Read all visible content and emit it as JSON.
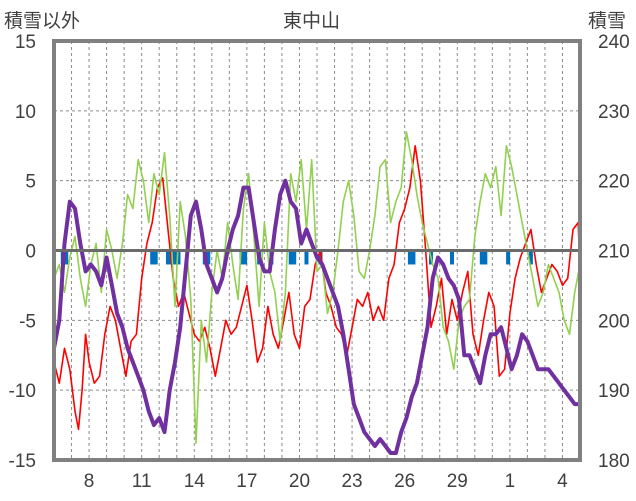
{
  "chart_data": {
    "type": "line",
    "title": "東中山",
    "ylabel_left": "積雪以外",
    "ylabel_right": "積雪",
    "left_axis": {
      "ylim": [
        -15,
        15
      ],
      "ticks": [
        "15",
        "10",
        "5",
        "0",
        "-5",
        "-10",
        "-15"
      ]
    },
    "right_axis": {
      "ylim": [
        180,
        240
      ],
      "ticks": [
        "240",
        "230",
        "220",
        "210",
        "200",
        "190",
        "180"
      ]
    },
    "x_ticks": [
      {
        "label": "8",
        "day": 2
      },
      {
        "label": "11",
        "day": 5
      },
      {
        "label": "14",
        "day": 8
      },
      {
        "label": "17",
        "day": 11
      },
      {
        "label": "20",
        "day": 14
      },
      {
        "label": "23",
        "day": 17
      },
      {
        "label": "26",
        "day": 20
      },
      {
        "label": "29",
        "day": 23
      },
      {
        "label": "1",
        "day": 26
      },
      {
        "label": "4",
        "day": 29
      }
    ],
    "x_range": [
      0,
      30
    ],
    "grid": "dashed-vertical-daily, dashed-horizontal",
    "colors": {
      "red": "#ff0000",
      "green": "#92d050",
      "purple": "#7030a0",
      "blue": "#0070c0",
      "frame": "#808080"
    },
    "series": [
      {
        "color_key": "red",
        "axis": "left",
        "x": [
          0.0,
          0.3,
          0.6,
          0.9,
          1.2,
          1.4,
          1.6,
          1.8,
          2.0,
          2.3,
          2.6,
          2.9,
          3.2,
          3.5,
          3.8,
          4.1,
          4.4,
          4.7,
          5.0,
          5.3,
          5.6,
          5.9,
          6.2,
          6.5,
          6.8,
          7.1,
          7.4,
          7.7,
          8.0,
          8.3,
          8.6,
          8.9,
          9.2,
          9.5,
          9.8,
          10.1,
          10.4,
          10.7,
          11.0,
          11.3,
          11.6,
          11.9,
          12.2,
          12.5,
          12.8,
          13.1,
          13.4,
          13.7,
          14.0,
          14.3,
          14.6,
          14.9,
          15.2,
          15.5,
          15.8,
          16.1,
          16.4,
          16.7,
          17.0,
          17.3,
          17.6,
          17.9,
          18.2,
          18.5,
          18.8,
          19.1,
          19.4,
          19.7,
          20.0,
          20.3,
          20.6,
          20.9,
          21.2,
          21.5,
          21.8,
          22.1,
          22.4,
          22.7,
          23.0,
          23.3,
          23.6,
          23.9,
          24.2,
          24.5,
          24.8,
          25.1,
          25.4,
          25.7,
          26.0,
          26.3,
          26.6,
          26.9,
          27.2,
          27.5,
          27.8,
          28.1,
          28.4,
          28.7,
          29.0,
          29.3,
          29.6,
          29.9,
          30.0
        ],
        "y": [
          -8.0,
          -9.5,
          -7.0,
          -8.5,
          -11.5,
          -12.8,
          -10.0,
          -6.0,
          -8.0,
          -9.5,
          -9.0,
          -6.0,
          -4.0,
          -5.0,
          -7.0,
          -9.0,
          -6.5,
          -6.0,
          -2.0,
          0.5,
          2.0,
          4.5,
          5.2,
          1.5,
          -2.0,
          -4.0,
          -3.0,
          -4.5,
          -6.0,
          -6.5,
          -5.5,
          -7.0,
          -9.0,
          -7.0,
          -5.0,
          -6.0,
          -5.5,
          -4.0,
          -2.5,
          -5.0,
          -8.0,
          -7.0,
          -4.0,
          -6.0,
          -7.0,
          -5.0,
          -3.0,
          -6.0,
          -7.0,
          -4.0,
          -3.5,
          -1.0,
          0.0,
          -3.0,
          -4.0,
          -5.5,
          -6.0,
          -7.5,
          -5.5,
          -3.5,
          -4.0,
          -3.0,
          -5.0,
          -4.0,
          -5.0,
          -2.0,
          -1.0,
          2.0,
          3.0,
          4.5,
          7.5,
          5.0,
          0.0,
          -5.5,
          -4.0,
          -2.0,
          -6.0,
          -3.5,
          -5.0,
          -3.0,
          -1.5,
          -6.0,
          -7.5,
          -5.0,
          -3.0,
          -4.0,
          -9.0,
          -8.5,
          -4.5,
          -2.0,
          -0.5,
          0.5,
          1.5,
          -1.0,
          -3.0,
          -2.0,
          -1.0,
          -1.5,
          -2.5,
          -2.0,
          1.5,
          2.0,
          -1.5
        ]
      },
      {
        "color_key": "green",
        "axis": "left",
        "x": [
          0.0,
          0.3,
          0.6,
          0.9,
          1.2,
          1.5,
          1.8,
          2.1,
          2.4,
          2.7,
          3.0,
          3.3,
          3.6,
          3.9,
          4.2,
          4.5,
          4.8,
          5.1,
          5.4,
          5.7,
          6.0,
          6.3,
          6.6,
          6.9,
          7.2,
          7.5,
          7.8,
          8.1,
          8.4,
          8.7,
          9.0,
          9.3,
          9.6,
          9.9,
          10.2,
          10.5,
          10.8,
          11.1,
          11.4,
          11.7,
          12.0,
          12.3,
          12.6,
          12.9,
          13.2,
          13.5,
          13.8,
          14.1,
          14.4,
          14.7,
          15.0,
          15.3,
          15.6,
          15.9,
          16.2,
          16.5,
          16.8,
          17.1,
          17.4,
          17.7,
          18.0,
          18.3,
          18.6,
          18.9,
          19.2,
          19.5,
          19.8,
          20.1,
          20.4,
          20.7,
          21.0,
          21.3,
          21.6,
          21.9,
          22.2,
          22.5,
          22.8,
          23.1,
          23.4,
          23.7,
          24.0,
          24.3,
          24.6,
          24.9,
          25.2,
          25.5,
          25.8,
          26.1,
          26.4,
          26.7,
          27.0,
          27.3,
          27.6,
          27.9,
          28.2,
          28.5,
          28.8,
          29.1,
          29.4,
          29.7,
          30.0
        ],
        "y": [
          -2.0,
          -1.0,
          -3.0,
          -0.5,
          1.0,
          -2.0,
          -4.0,
          -1.0,
          0.5,
          -3.0,
          1.5,
          0.0,
          -2.0,
          0.5,
          4.0,
          3.0,
          6.5,
          5.0,
          2.0,
          5.5,
          4.0,
          7.0,
          2.5,
          -4.0,
          3.5,
          1.0,
          -3.5,
          -13.8,
          -5.0,
          -8.0,
          -3.0,
          0.0,
          -2.0,
          2.0,
          -1.0,
          -3.5,
          3.0,
          5.5,
          1.0,
          -4.0,
          2.0,
          -1.5,
          -3.0,
          -6.5,
          -3.0,
          5.5,
          3.5,
          6.5,
          1.5,
          6.5,
          -1.5,
          -1.0,
          -4.5,
          -3.0,
          0.0,
          3.5,
          5.0,
          2.5,
          -1.5,
          -2.0,
          0.0,
          2.5,
          6.0,
          6.5,
          2.0,
          3.5,
          4.5,
          8.5,
          6.5,
          4.0,
          2.0,
          0.5,
          -1.0,
          -2.0,
          -5.5,
          -6.5,
          -8.5,
          -5.0,
          -4.0,
          -3.5,
          1.0,
          3.5,
          5.5,
          4.5,
          6.0,
          2.5,
          7.5,
          6.0,
          4.0,
          2.0,
          0.0,
          -2.0,
          -4.0,
          -3.0,
          -1.0,
          -2.0,
          -3.0,
          -5.0,
          -6.0,
          -3.0,
          -1.0
        ]
      },
      {
        "color_key": "purple",
        "axis": "right",
        "x": [
          0.0,
          0.3,
          0.6,
          0.9,
          1.2,
          1.5,
          1.8,
          2.1,
          2.4,
          2.7,
          3.0,
          3.3,
          3.6,
          3.9,
          4.2,
          4.5,
          4.8,
          5.1,
          5.4,
          5.7,
          6.0,
          6.3,
          6.6,
          6.9,
          7.2,
          7.5,
          7.8,
          8.1,
          8.4,
          8.7,
          9.0,
          9.3,
          9.6,
          9.9,
          10.2,
          10.5,
          10.8,
          11.1,
          11.4,
          11.7,
          12.0,
          12.3,
          12.6,
          12.9,
          13.2,
          13.5,
          13.8,
          14.1,
          14.4,
          14.7,
          15.0,
          15.3,
          15.6,
          15.9,
          16.2,
          16.5,
          16.8,
          17.1,
          17.4,
          17.7,
          18.0,
          18.3,
          18.6,
          18.9,
          19.2,
          19.5,
          19.8,
          20.1,
          20.4,
          20.7,
          21.0,
          21.3,
          21.6,
          21.9,
          22.2,
          22.5,
          22.8,
          23.1,
          23.4,
          23.7,
          24.0,
          24.3,
          24.6,
          24.9,
          25.2,
          25.5,
          25.8,
          26.1,
          26.4,
          26.7,
          27.0,
          27.3,
          27.6,
          27.9,
          28.2,
          28.5,
          28.8,
          29.1,
          29.4,
          29.7,
          30.0
        ],
        "y": [
          196.0,
          200.0,
          211.0,
          217.0,
          216.0,
          211.0,
          207.0,
          208.0,
          207.0,
          205.0,
          209.0,
          205.0,
          201.0,
          199.0,
          196.0,
          194.0,
          192.0,
          190.0,
          187.0,
          185.0,
          186.0,
          184.0,
          190.0,
          194.0,
          199.0,
          207.0,
          215.0,
          217.0,
          213.0,
          208.0,
          206.0,
          204.0,
          206.0,
          210.0,
          213.0,
          215.0,
          219.0,
          219.0,
          214.0,
          209.0,
          207.0,
          207.0,
          213.0,
          218.0,
          220.0,
          217.0,
          216.0,
          211.0,
          213.0,
          211.0,
          209.0,
          208.0,
          206.0,
          204.0,
          202.0,
          198.0,
          193.0,
          188.0,
          186.0,
          184.0,
          183.0,
          182.0,
          183.0,
          182.0,
          181.0,
          181.0,
          184.0,
          186.0,
          189.0,
          191.0,
          195.0,
          199.0,
          206.0,
          209.0,
          208.0,
          206.0,
          205.0,
          203.0,
          195.0,
          195.0,
          193.0,
          191.0,
          195.0,
          198.0,
          198.0,
          199.0,
          196.0,
          193.0,
          195.0,
          198.0,
          197.0,
          195.0,
          193.0,
          193.0,
          193.0,
          192.0,
          191.0,
          190.0,
          189.0,
          188.0,
          188.0
        ]
      }
    ],
    "bars": {
      "color_key": "blue",
      "axis": "left",
      "x": [
        0.5,
        0.7,
        5.6,
        5.8,
        6.5,
        6.7,
        6.9,
        7.1,
        8.6,
        8.8,
        10.7,
        10.9,
        11.7,
        12.4,
        13.5,
        13.7,
        14.4,
        15.2,
        20.3,
        20.5,
        21.5,
        22.7,
        24.4,
        24.6,
        25.9,
        27.2
      ],
      "y": [
        -1.0,
        -1.0,
        -1.0,
        -1.0,
        -1.0,
        -1.0,
        -1.0,
        -1.0,
        -1.0,
        -1.0,
        -1.0,
        -1.0,
        -1.0,
        -1.0,
        -1.0,
        -1.0,
        -1.0,
        -1.0,
        -1.0,
        -1.0,
        -1.0,
        -1.0,
        -1.0,
        -1.0,
        -1.0,
        -1.0
      ]
    }
  }
}
